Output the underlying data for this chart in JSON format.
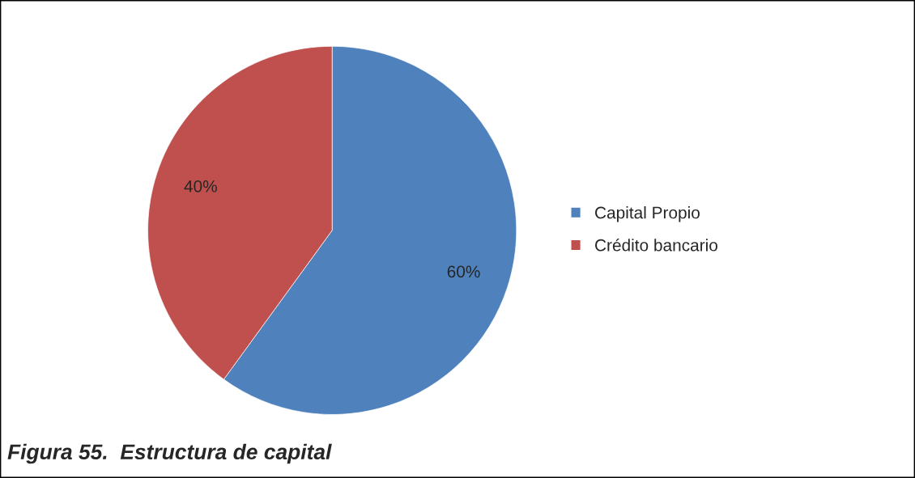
{
  "chart_data": {
    "type": "pie",
    "categories": [
      "Capital Propio",
      "Crédito bancario"
    ],
    "values": [
      60,
      40
    ],
    "colors": [
      "#4f81bd",
      "#c0504d"
    ],
    "value_labels": [
      "60%",
      "40%"
    ],
    "legend": "right",
    "annotations": [
      "Figura 55.  Estructura de capital"
    ]
  }
}
